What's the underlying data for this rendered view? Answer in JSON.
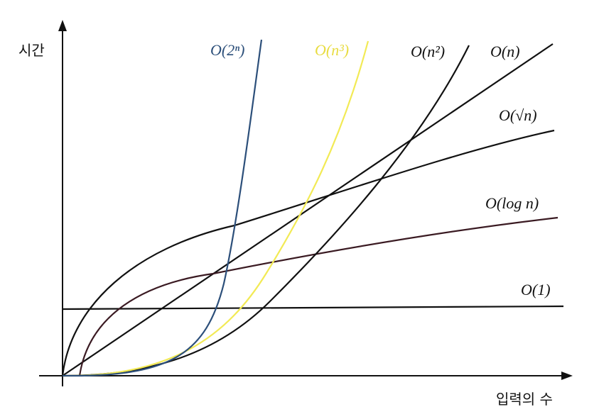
{
  "axes": {
    "y_label": "시간",
    "x_label": "입력의 수"
  },
  "curves": [
    {
      "label": "O(2ⁿ)"
    },
    {
      "label": "O(n³)"
    },
    {
      "label": "O(n²)"
    },
    {
      "label": "O(n)"
    },
    {
      "label": "O(√n)"
    },
    {
      "label": "O(log n)"
    },
    {
      "label": "O(1)"
    }
  ]
}
